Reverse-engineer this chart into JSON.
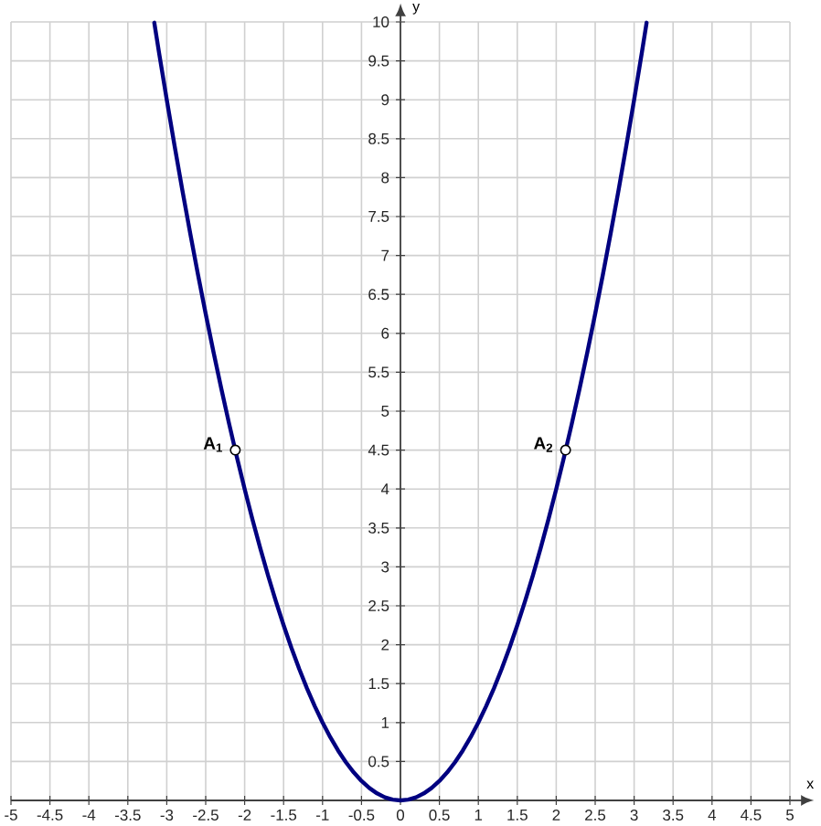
{
  "chart_data": {
    "type": "line",
    "xlabel": "x",
    "ylabel": "y",
    "xlim": [
      -5,
      5
    ],
    "ylim": [
      0,
      10
    ],
    "xticks": [
      -5,
      -4.5,
      -4,
      -3.5,
      -3,
      -2.5,
      -2,
      -1.5,
      -1,
      -0.5,
      0,
      0.5,
      1,
      1.5,
      2,
      2.5,
      3,
      3.5,
      4,
      4.5,
      5
    ],
    "yticks": [
      0.5,
      1,
      1.5,
      2,
      2.5,
      3,
      3.5,
      4,
      4.5,
      5,
      5.5,
      6,
      6.5,
      7,
      7.5,
      8,
      8.5,
      9,
      9.5,
      10
    ],
    "grid": true,
    "series": [
      {
        "color": "#000080",
        "marker": "none",
        "line_style": "solid",
        "x": [
          -3.16,
          -3.1,
          -3.0,
          -2.9,
          -2.8,
          -2.7,
          -2.6,
          -2.5,
          -2.4,
          -2.3,
          -2.2,
          -2.1,
          -2.0,
          -1.9,
          -1.8,
          -1.7,
          -1.6,
          -1.5,
          -1.4,
          -1.3,
          -1.2,
          -1.1,
          -1.0,
          -0.9,
          -0.8,
          -0.7,
          -0.6,
          -0.5,
          -0.4,
          -0.3,
          -0.2,
          -0.1,
          0,
          0.1,
          0.2,
          0.3,
          0.4,
          0.5,
          0.6,
          0.7,
          0.8,
          0.9,
          1.0,
          1.1,
          1.2,
          1.3,
          1.4,
          1.5,
          1.6,
          1.7,
          1.8,
          1.9,
          2.0,
          2.1,
          2.2,
          2.3,
          2.4,
          2.5,
          2.6,
          2.7,
          2.8,
          2.9,
          3.0,
          3.1,
          3.16
        ],
        "values": [
          9.99,
          9.61,
          9,
          8.41,
          7.84,
          7.29,
          6.76,
          6.25,
          5.76,
          5.29,
          4.84,
          4.41,
          4,
          3.61,
          3.24,
          2.89,
          2.56,
          2.25,
          1.96,
          1.69,
          1.44,
          1.21,
          1,
          0.81,
          0.64,
          0.49,
          0.36,
          0.25,
          0.16,
          0.09,
          0.04,
          0.01,
          0,
          0.01,
          0.04,
          0.09,
          0.16,
          0.25,
          0.36,
          0.49,
          0.64,
          0.81,
          1,
          1.21,
          1.44,
          1.69,
          1.96,
          2.25,
          2.56,
          2.89,
          3.24,
          3.61,
          4,
          4.41,
          4.84,
          5.29,
          5.76,
          6.25,
          6.76,
          7.29,
          7.84,
          8.41,
          9,
          9.61,
          9.99
        ]
      },
      {
        "type": "scatter",
        "color": "#ffffff",
        "marker": "circle",
        "x": [
          -2.12,
          2.12
        ],
        "values": [
          4.5,
          4.5
        ]
      }
    ],
    "annotations": [
      {
        "text": "A$_{1}$",
        "x": -2.12,
        "y": 4.5
      },
      {
        "text": "A$_{2}$",
        "x": 2.12,
        "y": 4.5
      }
    ]
  }
}
